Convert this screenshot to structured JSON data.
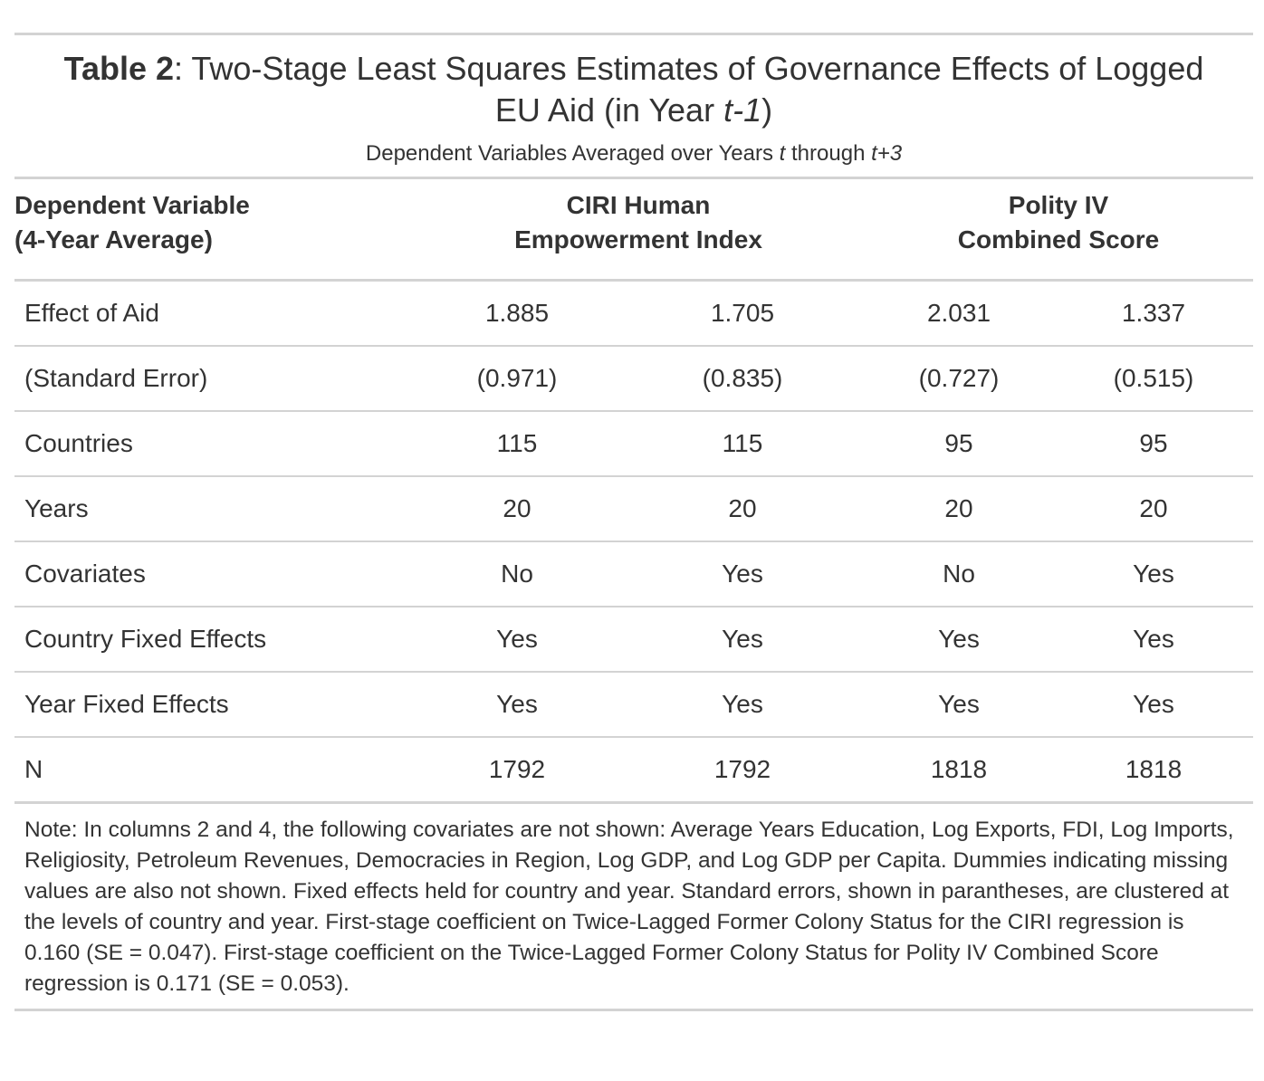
{
  "title": {
    "label": "Table 2",
    "text_before_italic": ": Two-Stage Least Squares Estimates of Governance Effects of Logged EU Aid (in Year ",
    "italic": "t-1",
    "text_after_italic": ")"
  },
  "subtitle": {
    "part1": "Dependent Variables Averaged over Years ",
    "italic1": "t",
    "part2": " through ",
    "italic2": "t+3"
  },
  "header": {
    "stub_line1": "Dependent Variable",
    "stub_line2": "(4-Year Average)",
    "group1_line1": "CIRI Human",
    "group1_line2": "Empowerment Index",
    "group2_line1": "Polity IV",
    "group2_line2": "Combined Score"
  },
  "rows": [
    {
      "label": "Effect of Aid",
      "values": [
        "1.885",
        "1.705",
        "2.031",
        "1.337"
      ]
    },
    {
      "label": "(Standard Error)",
      "values": [
        "(0.971)",
        "(0.835)",
        "(0.727)",
        "(0.515)"
      ]
    },
    {
      "label": "Countries",
      "values": [
        "115",
        "115",
        "95",
        "95"
      ]
    },
    {
      "label": "Years",
      "values": [
        "20",
        "20",
        "20",
        "20"
      ]
    },
    {
      "label": "Covariates",
      "values": [
        "No",
        "Yes",
        "No",
        "Yes"
      ]
    },
    {
      "label": "Country Fixed Effects",
      "values": [
        "Yes",
        "Yes",
        "Yes",
        "Yes"
      ]
    },
    {
      "label": "Year Fixed Effects",
      "values": [
        "Yes",
        "Yes",
        "Yes",
        "Yes"
      ]
    },
    {
      "label": "N",
      "values": [
        "1792",
        "1792",
        "1818",
        "1818"
      ]
    }
  ],
  "note": "Note: In columns 2 and 4, the following covariates are not shown: Average Years Education, Log Exports, FDI, Log Imports, Religiosity, Petroleum Revenues, Democracies in Region, Log GDP, and Log GDP per Capita. Dummies indicating missing values are also not shown. Fixed effects held for country and year. Standard errors, shown in parantheses, are clustered at the levels of country and year. First-stage coefficient on Twice-Lagged Former Colony Status for the CIRI regression is 0.160 (SE = 0.047). First-stage coefficient on the Twice-Lagged Former Colony Status for Polity IV Combined Score regression is 0.171 (SE = 0.053)."
}
